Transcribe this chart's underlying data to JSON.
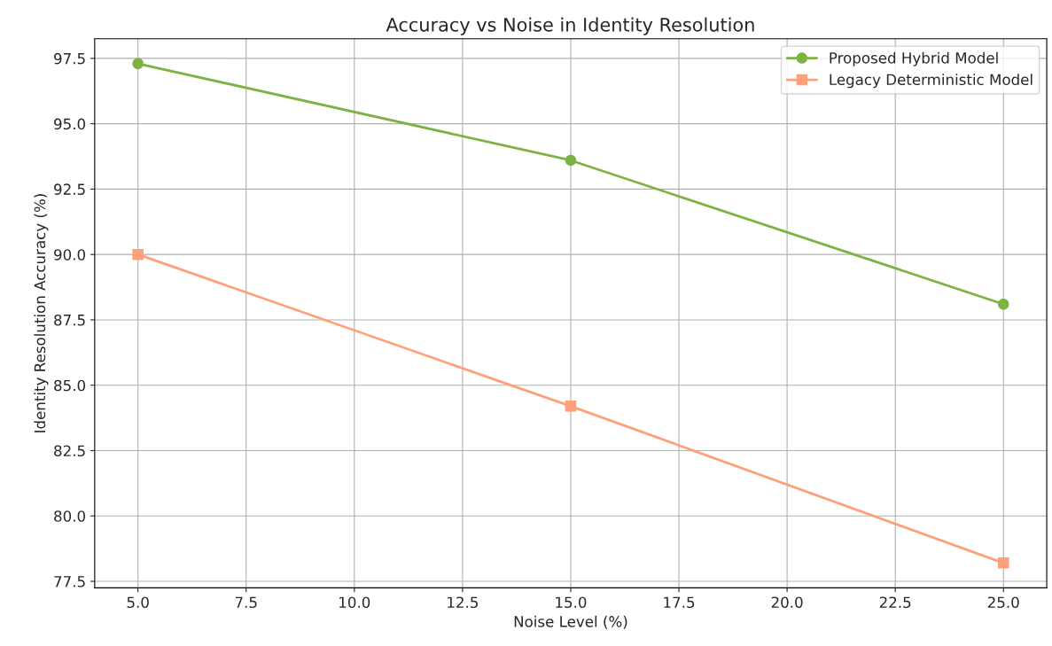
{
  "chart_data": {
    "type": "line",
    "title": "Accuracy vs Noise in Identity Resolution",
    "xlabel": "Noise Level (%)",
    "ylabel": "Identity Resolution Accuracy (%)",
    "x": [
      5,
      15,
      25
    ],
    "series": [
      {
        "name": "Proposed Hybrid Model",
        "color": "#7cb342",
        "values": [
          97.3,
          93.6,
          88.1
        ],
        "marker": "circle"
      },
      {
        "name": "Legacy Deterministic Model",
        "color": "#ffa07a",
        "values": [
          90.0,
          84.2,
          78.2
        ],
        "marker": "square"
      }
    ],
    "xlim": [
      4,
      26
    ],
    "xticks": [
      {
        "value": 5,
        "label": "5.0"
      },
      7.5,
      {
        "value": 10,
        "label": "10.0"
      },
      12.5,
      {
        "value": 15,
        "label": "15.0"
      },
      17.5,
      {
        "value": 20,
        "label": "20.0"
      },
      22.5,
      {
        "value": 25,
        "label": "25.0"
      }
    ],
    "ylim": [
      77.25,
      98.25
    ],
    "yticks": [
      77.5,
      {
        "value": 80,
        "label": "80.0"
      },
      82.5,
      {
        "value": 85,
        "label": "85.0"
      },
      87.5,
      {
        "value": 90,
        "label": "90.0"
      },
      92.5,
      {
        "value": 95,
        "label": "95.0"
      },
      97.5
    ],
    "grid": true,
    "legend": "top right",
    "line_style": "solid"
  }
}
